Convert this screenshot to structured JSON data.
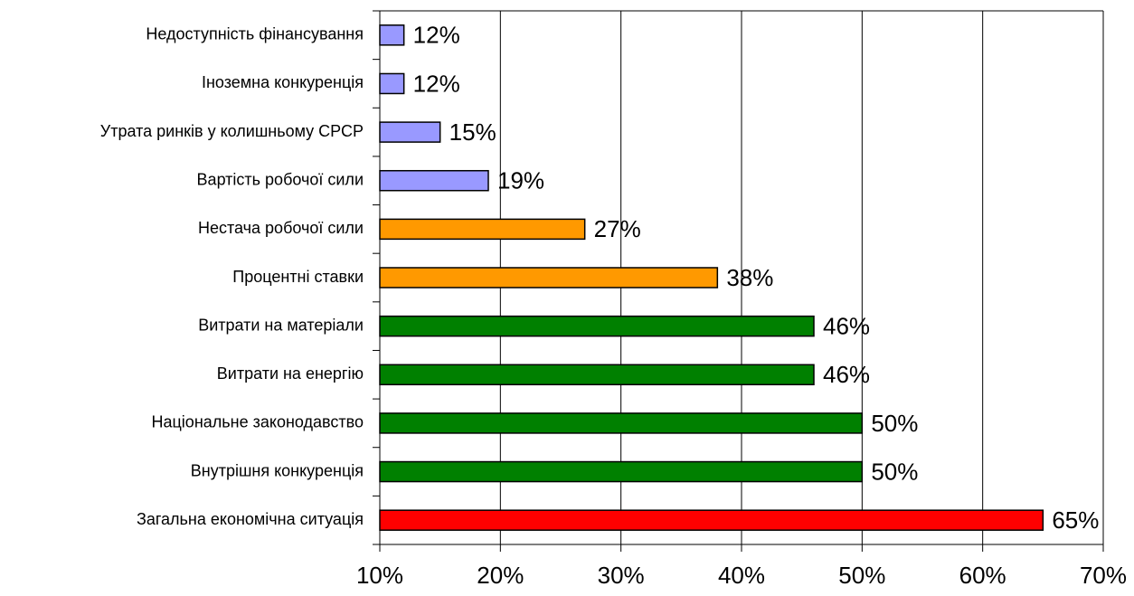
{
  "chart_data": {
    "type": "bar",
    "orientation": "horizontal",
    "categories": [
      "Недоступність фінансування",
      "Іноземна конкуренція",
      "Утрата ринків у колишньому СРСР",
      "Вартість робочої сили",
      "Нестача робочої сили",
      "Процентні ставки",
      "Витрати на матеріали",
      "Витрати на енергію",
      "Національне законодавство",
      "Внутрішня конкуренція",
      "Загальна економічна ситуація"
    ],
    "values": [
      12,
      12,
      15,
      19,
      27,
      38,
      46,
      46,
      50,
      50,
      65
    ],
    "value_labels": [
      "12%",
      "12%",
      "15%",
      "19%",
      "27%",
      "38%",
      "46%",
      "46%",
      "50%",
      "50%",
      "65%"
    ],
    "colors": [
      "#9999ff",
      "#9999ff",
      "#9999ff",
      "#9999ff",
      "#ff9900",
      "#ff9900",
      "#008000",
      "#008000",
      "#008000",
      "#008000",
      "#ff0000"
    ],
    "xlim": [
      10,
      70
    ],
    "xticks": [
      {
        "value": 10,
        "label": "10%"
      },
      {
        "value": 20,
        "label": "20%"
      },
      {
        "value": 30,
        "label": "30%"
      },
      {
        "value": 40,
        "label": "40%"
      },
      {
        "value": 50,
        "label": "50%"
      },
      {
        "value": 60,
        "label": "60%"
      },
      {
        "value": 70,
        "label": "70%"
      }
    ],
    "grid": true
  }
}
